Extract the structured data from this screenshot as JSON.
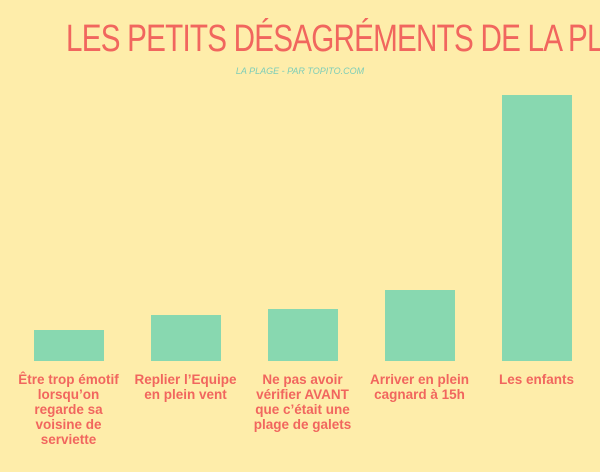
{
  "chart_data": {
    "type": "bar",
    "title": "LES PETITS DÉSAGRÉMENTS DE LA PLAGE",
    "subtitle": "LA PLAGE - PAR TOPITO.COM",
    "categories": [
      "Être trop émotif lorsqu’on regarde sa voisine de serviette",
      "Replier l’Equipe en plein vent",
      "Ne pas avoir vérifier AVANT que c’était une plage de galets",
      "Arriver en plein cagnard à 15h",
      "Les enfants"
    ],
    "values": [
      31,
      46,
      52,
      71,
      266
    ],
    "color": "#88d8b0"
  }
}
